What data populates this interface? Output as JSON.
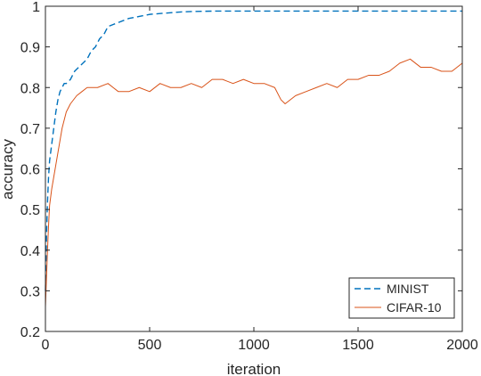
{
  "chart_data": {
    "type": "line",
    "title": "",
    "xlabel": "iteration",
    "ylabel": "accuracy",
    "xlim": [
      0,
      2000
    ],
    "ylim": [
      0.2,
      1.0
    ],
    "xticks": [
      0,
      500,
      1000,
      1500,
      2000
    ],
    "xtick_labels": [
      "0",
      "500",
      "1000",
      "1500",
      "2000"
    ],
    "yticks": [
      0.2,
      0.3,
      0.4,
      0.5,
      0.6,
      0.7,
      0.8,
      0.9,
      1.0
    ],
    "ytick_labels": [
      "0.2",
      "0.3",
      "0.4",
      "0.5",
      "0.6",
      "0.7",
      "0.8",
      "0.9",
      "1"
    ],
    "grid": false,
    "legend_position": "bottom-right",
    "series": [
      {
        "name": "MINIST",
        "color": "#0072BD",
        "line_style": "dashed",
        "x": [
          0,
          5,
          10,
          15,
          20,
          25,
          30,
          40,
          50,
          60,
          70,
          80,
          90,
          100,
          120,
          140,
          160,
          180,
          200,
          220,
          240,
          260,
          280,
          300,
          350,
          400,
          450,
          500,
          550,
          600,
          650,
          700,
          800,
          900,
          1000,
          1100,
          1200,
          1300,
          1400,
          1500,
          1600,
          1700,
          1800,
          1900,
          2000
        ],
        "y": [
          0.3,
          0.43,
          0.52,
          0.58,
          0.62,
          0.64,
          0.66,
          0.7,
          0.74,
          0.77,
          0.79,
          0.8,
          0.81,
          0.81,
          0.82,
          0.84,
          0.85,
          0.86,
          0.87,
          0.89,
          0.9,
          0.92,
          0.93,
          0.95,
          0.96,
          0.97,
          0.975,
          0.98,
          0.982,
          0.984,
          0.986,
          0.987,
          0.988,
          0.988,
          0.988,
          0.988,
          0.988,
          0.988,
          0.988,
          0.988,
          0.988,
          0.988,
          0.988,
          0.988,
          0.988
        ]
      },
      {
        "name": "CIFAR-10",
        "color": "#D95319",
        "line_style": "solid",
        "x": [
          0,
          5,
          10,
          15,
          20,
          30,
          40,
          50,
          60,
          70,
          80,
          100,
          120,
          150,
          175,
          200,
          250,
          300,
          350,
          400,
          450,
          500,
          550,
          600,
          650,
          700,
          750,
          800,
          850,
          900,
          950,
          1000,
          1050,
          1100,
          1130,
          1150,
          1200,
          1250,
          1300,
          1350,
          1400,
          1450,
          1500,
          1550,
          1600,
          1650,
          1700,
          1750,
          1800,
          1850,
          1900,
          1950,
          2000
        ],
        "y": [
          0.26,
          0.33,
          0.4,
          0.46,
          0.51,
          0.55,
          0.58,
          0.61,
          0.64,
          0.67,
          0.7,
          0.74,
          0.76,
          0.78,
          0.79,
          0.8,
          0.8,
          0.81,
          0.79,
          0.79,
          0.8,
          0.79,
          0.81,
          0.8,
          0.8,
          0.81,
          0.8,
          0.82,
          0.82,
          0.81,
          0.82,
          0.81,
          0.81,
          0.8,
          0.77,
          0.76,
          0.78,
          0.79,
          0.8,
          0.81,
          0.8,
          0.82,
          0.82,
          0.83,
          0.83,
          0.84,
          0.86,
          0.87,
          0.85,
          0.85,
          0.84,
          0.84,
          0.86
        ]
      }
    ]
  }
}
